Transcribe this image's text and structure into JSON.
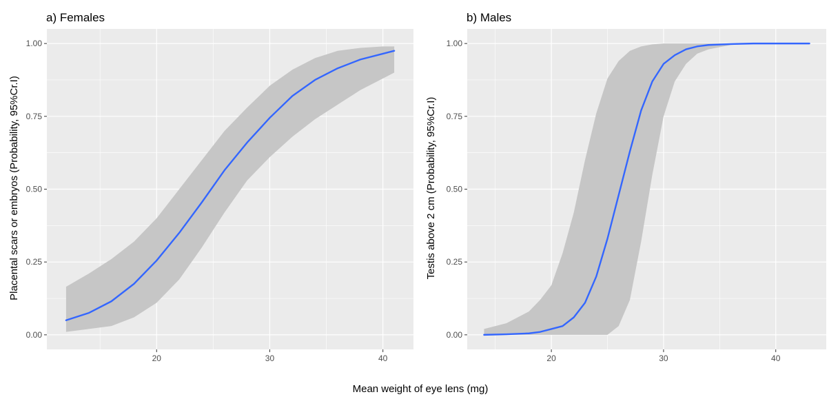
{
  "figure": {
    "xlabel": "Mean weight of eye lens (mg)"
  },
  "colors": {
    "panel_background": "#ebebeb",
    "grid": "#ffffff",
    "line": "#3366ff",
    "ribbon": "#c6c6c6",
    "tick_label": "#4d4d4d"
  },
  "chart_data": [
    {
      "type": "line",
      "title": "a) Females",
      "xlabel": "Mean weight of eye lens (mg)",
      "ylabel": "Placental scars or embryos (Probability, 95%Cr.I)",
      "xlim": [
        10.3,
        42.7
      ],
      "ylim": [
        -0.05,
        1.05
      ],
      "x_ticks": [
        20,
        30,
        40
      ],
      "y_ticks": [
        0,
        0.25,
        0.5,
        0.75,
        1.0
      ],
      "x_tick_labels": [
        "20",
        "30",
        "40"
      ],
      "y_tick_labels": [
        "0.00",
        "0.25",
        "0.50",
        "0.75",
        "1.00"
      ],
      "grid": true,
      "series": [
        {
          "x": [
            12,
            14,
            16,
            18,
            20,
            22,
            24,
            25,
            26,
            28,
            30,
            32,
            34,
            36,
            38,
            40,
            41
          ],
          "y": [
            0.05,
            0.075,
            0.115,
            0.175,
            0.255,
            0.35,
            0.455,
            0.51,
            0.565,
            0.66,
            0.745,
            0.82,
            0.875,
            0.915,
            0.945,
            0.965,
            0.975
          ],
          "lower": [
            0.01,
            0.02,
            0.03,
            0.06,
            0.11,
            0.19,
            0.3,
            0.36,
            0.42,
            0.53,
            0.61,
            0.68,
            0.74,
            0.79,
            0.84,
            0.88,
            0.9
          ],
          "upper": [
            0.165,
            0.21,
            0.26,
            0.32,
            0.4,
            0.5,
            0.6,
            0.65,
            0.7,
            0.78,
            0.855,
            0.91,
            0.95,
            0.975,
            0.985,
            0.99,
            0.99
          ]
        }
      ]
    },
    {
      "type": "line",
      "title": "b) Males",
      "xlabel": "Mean weight of eye lens (mg)",
      "ylabel": "Testis above 2 cm (Probability, 95%Cr.I)",
      "xlim": [
        12.5,
        44.5
      ],
      "ylim": [
        -0.05,
        1.05
      ],
      "x_ticks": [
        20,
        30,
        40
      ],
      "y_ticks": [
        0,
        0.25,
        0.5,
        0.75,
        1.0
      ],
      "x_tick_labels": [
        "20",
        "30",
        "40"
      ],
      "y_tick_labels": [
        "0.00",
        "0.25",
        "0.50",
        "0.75",
        "1.00"
      ],
      "grid": true,
      "series": [
        {
          "x": [
            14,
            16,
            18,
            19,
            20,
            21,
            22,
            23,
            24,
            25,
            26,
            27,
            28,
            29,
            30,
            31,
            32,
            33,
            34,
            36,
            38,
            40,
            43
          ],
          "y": [
            0.0,
            0.002,
            0.005,
            0.01,
            0.02,
            0.03,
            0.06,
            0.11,
            0.2,
            0.33,
            0.48,
            0.63,
            0.77,
            0.87,
            0.93,
            0.96,
            0.98,
            0.99,
            0.995,
            0.998,
            1.0,
            1.0,
            1.0
          ],
          "lower": [
            0.0,
            0.0,
            0.0,
            0.0,
            0.0,
            0.0,
            0.0,
            0.0,
            0.0,
            0.0,
            0.03,
            0.12,
            0.32,
            0.55,
            0.75,
            0.87,
            0.93,
            0.965,
            0.98,
            0.995,
            0.999,
            1.0,
            1.0
          ],
          "upper": [
            0.02,
            0.04,
            0.08,
            0.12,
            0.17,
            0.28,
            0.42,
            0.6,
            0.76,
            0.88,
            0.94,
            0.975,
            0.99,
            0.997,
            1.0,
            1.0,
            1.0,
            1.0,
            1.0,
            1.0,
            1.0,
            1.0,
            1.0
          ]
        }
      ]
    }
  ]
}
